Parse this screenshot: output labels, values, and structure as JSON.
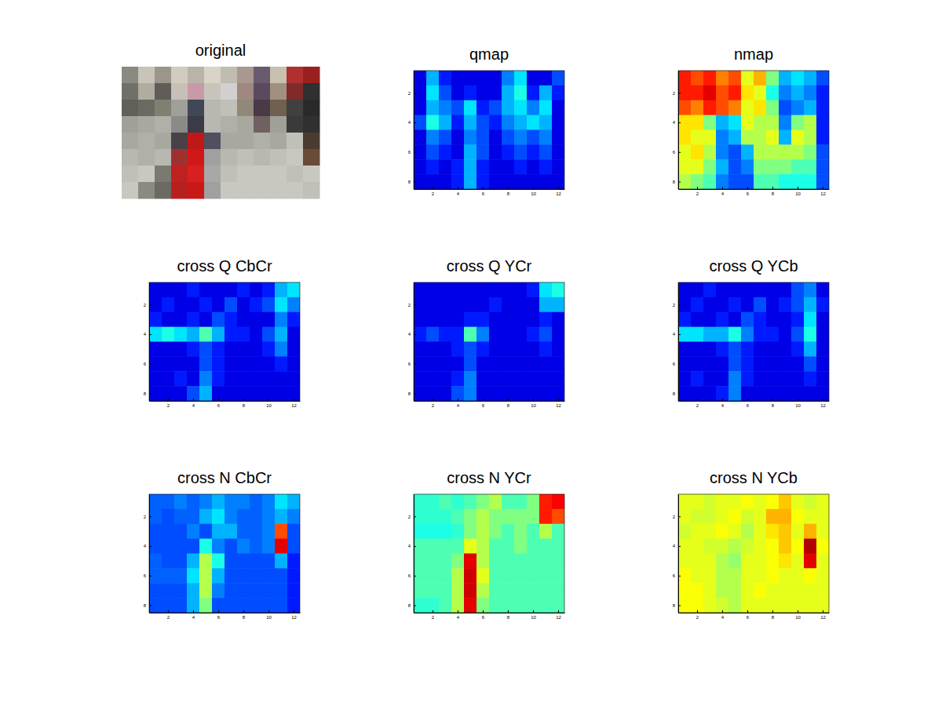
{
  "chart_data": [
    {
      "type": "image",
      "title": "original",
      "colors": [
        [
          "#8a8a80",
          "#c8c4b8",
          "#9a968c",
          "#d0ccc0",
          "#b8b4a8",
          "#d8d4c8",
          "#c0bcb0",
          "#a89890",
          "#6a5a70",
          "#c8c0b0",
          "#b03030",
          "#9a2020"
        ],
        [
          "#707068",
          "#b0aca0",
          "#605c58",
          "#c8c0b8",
          "#c89aa8",
          "#c8c4bc",
          "#d0d0d0",
          "#a08880",
          "#5a4a60",
          "#a09080",
          "#802a2a",
          "#303030"
        ],
        [
          "#606058",
          "#6a6a60",
          "#808070",
          "#a0a098",
          "#404858",
          "#b8b8b0",
          "#c0c0b8",
          "#908878",
          "#4a3a48",
          "#706050",
          "#404040",
          "#2a2a2a"
        ],
        [
          "#a0a098",
          "#a8a8a0",
          "#b0b0a8",
          "#8a8a88",
          "#3a3a48",
          "#b8b8b0",
          "#b0b0a8",
          "#a8a8a0",
          "#706060",
          "#a0a098",
          "#3a3a3a",
          "#303030"
        ],
        [
          "#a8a8a0",
          "#b0b0a8",
          "#a8a8a0",
          "#4a4048",
          "#c01818",
          "#505060",
          "#a8a8a0",
          "#a8a8a0",
          "#b0b0a8",
          "#a8a8a0",
          "#c0c0b8",
          "#4a3a30"
        ],
        [
          "#b8b8b0",
          "#b0b0a8",
          "#b8b8b0",
          "#a03030",
          "#d01818",
          "#a0a0a0",
          "#b8b8b0",
          "#c0c0b8",
          "#b8b8b0",
          "#c0c0b8",
          "#c8c8c0",
          "#6a4a38"
        ],
        [
          "#c0c0b8",
          "#c8c8c0",
          "#7a7a70",
          "#c02020",
          "#d82020",
          "#a8a8a8",
          "#c0c0b8",
          "#c8c8c0",
          "#c8c8c0",
          "#c8c8c0",
          "#c0c0b8",
          "#c8c8c0"
        ],
        [
          "#c8c8c0",
          "#8a8a80",
          "#6a6a60",
          "#b82020",
          "#c81818",
          "#a0a0a0",
          "#c8c8c0",
          "#c8c8c0",
          "#c8c8c0",
          "#c8c8c0",
          "#c8c8c0",
          "#c0c0b8"
        ]
      ]
    },
    {
      "type": "heatmap",
      "title": "qmap",
      "clim": [
        0,
        1
      ],
      "xlim": [
        0.5,
        12.5
      ],
      "ylim": [
        0.5,
        8.5
      ],
      "xticks": [
        2,
        4,
        6,
        8,
        10,
        12
      ],
      "yticks": [
        2,
        4,
        6,
        8
      ],
      "z": [
        [
          0.1,
          0.3,
          0.15,
          0.1,
          0.1,
          0.1,
          0.1,
          0.25,
          0.35,
          0.1,
          0.1,
          0.2
        ],
        [
          0.1,
          0.35,
          0.2,
          0.1,
          0.15,
          0.1,
          0.1,
          0.3,
          0.4,
          0.15,
          0.3,
          0.15
        ],
        [
          0.1,
          0.3,
          0.25,
          0.2,
          0.35,
          0.15,
          0.2,
          0.3,
          0.35,
          0.25,
          0.35,
          0.1
        ],
        [
          0.2,
          0.4,
          0.3,
          0.15,
          0.3,
          0.2,
          0.15,
          0.25,
          0.3,
          0.35,
          0.3,
          0.1
        ],
        [
          0.1,
          0.25,
          0.2,
          0.1,
          0.25,
          0.2,
          0.1,
          0.2,
          0.25,
          0.2,
          0.25,
          0.1
        ],
        [
          0.1,
          0.2,
          0.15,
          0.1,
          0.3,
          0.2,
          0.1,
          0.15,
          0.2,
          0.15,
          0.2,
          0.1
        ],
        [
          0.1,
          0.15,
          0.1,
          0.15,
          0.3,
          0.15,
          0.1,
          0.1,
          0.15,
          0.1,
          0.15,
          0.1
        ],
        [
          0.1,
          0.1,
          0.1,
          0.15,
          0.3,
          0.15,
          0.1,
          0.1,
          0.1,
          0.1,
          0.1,
          0.1
        ]
      ]
    },
    {
      "type": "heatmap",
      "title": "nmap",
      "clim": [
        0,
        1
      ],
      "xlim": [
        0.5,
        12.5
      ],
      "ylim": [
        0.5,
        8.5
      ],
      "xticks": [
        2,
        4,
        6,
        8,
        10,
        12
      ],
      "yticks": [
        2,
        4,
        6,
        8
      ],
      "z": [
        [
          0.85,
          0.8,
          0.85,
          0.75,
          0.8,
          0.6,
          0.7,
          0.5,
          0.3,
          0.35,
          0.3,
          0.2
        ],
        [
          0.85,
          0.85,
          0.9,
          0.8,
          0.85,
          0.65,
          0.6,
          0.4,
          0.25,
          0.3,
          0.25,
          0.15
        ],
        [
          0.8,
          0.75,
          0.85,
          0.8,
          0.75,
          0.6,
          0.65,
          0.5,
          0.2,
          0.25,
          0.3,
          0.15
        ],
        [
          0.65,
          0.65,
          0.5,
          0.3,
          0.35,
          0.6,
          0.55,
          0.55,
          0.25,
          0.5,
          0.55,
          0.15
        ],
        [
          0.65,
          0.6,
          0.6,
          0.25,
          0.3,
          0.55,
          0.55,
          0.6,
          0.3,
          0.6,
          0.55,
          0.15
        ],
        [
          0.6,
          0.65,
          0.55,
          0.25,
          0.2,
          0.3,
          0.55,
          0.55,
          0.55,
          0.55,
          0.5,
          0.2
        ],
        [
          0.6,
          0.6,
          0.5,
          0.3,
          0.2,
          0.25,
          0.5,
          0.5,
          0.5,
          0.45,
          0.45,
          0.2
        ],
        [
          0.55,
          0.5,
          0.45,
          0.25,
          0.2,
          0.2,
          0.45,
          0.45,
          0.4,
          0.4,
          0.4,
          0.2
        ]
      ]
    },
    {
      "type": "heatmap",
      "title": "cross Q CbCr",
      "clim": [
        0,
        1
      ],
      "xlim": [
        0.5,
        12.5
      ],
      "ylim": [
        0.5,
        8.5
      ],
      "xticks": [
        2,
        4,
        6,
        8,
        10,
        12
      ],
      "yticks": [
        2,
        4,
        6,
        8
      ],
      "z": [
        [
          0.1,
          0.1,
          0.1,
          0.15,
          0.1,
          0.1,
          0.1,
          0.15,
          0.1,
          0.15,
          0.3,
          0.35
        ],
        [
          0.1,
          0.15,
          0.1,
          0.1,
          0.15,
          0.1,
          0.2,
          0.1,
          0.15,
          0.2,
          0.35,
          0.25
        ],
        [
          0.15,
          0.1,
          0.1,
          0.15,
          0.1,
          0.2,
          0.15,
          0.1,
          0.1,
          0.1,
          0.25,
          0.15
        ],
        [
          0.35,
          0.4,
          0.35,
          0.3,
          0.45,
          0.3,
          0.15,
          0.15,
          0.1,
          0.2,
          0.3,
          0.1
        ],
        [
          0.1,
          0.1,
          0.1,
          0.15,
          0.2,
          0.15,
          0.1,
          0.1,
          0.1,
          0.15,
          0.25,
          0.1
        ],
        [
          0.1,
          0.1,
          0.1,
          0.1,
          0.2,
          0.15,
          0.1,
          0.1,
          0.1,
          0.1,
          0.15,
          0.1
        ],
        [
          0.1,
          0.1,
          0.15,
          0.1,
          0.25,
          0.15,
          0.1,
          0.1,
          0.1,
          0.1,
          0.1,
          0.1
        ],
        [
          0.1,
          0.1,
          0.1,
          0.2,
          0.3,
          0.1,
          0.1,
          0.1,
          0.1,
          0.1,
          0.1,
          0.1
        ]
      ]
    },
    {
      "type": "heatmap",
      "title": "cross Q YCr",
      "clim": [
        0,
        1
      ],
      "xlim": [
        0.5,
        12.5
      ],
      "ylim": [
        0.5,
        8.5
      ],
      "xticks": [
        2,
        4,
        6,
        8,
        10,
        12
      ],
      "yticks": [
        2,
        4,
        6,
        8
      ],
      "z": [
        [
          0.1,
          0.1,
          0.1,
          0.1,
          0.1,
          0.1,
          0.1,
          0.1,
          0.1,
          0.15,
          0.35,
          0.4
        ],
        [
          0.1,
          0.1,
          0.1,
          0.1,
          0.1,
          0.1,
          0.15,
          0.1,
          0.1,
          0.1,
          0.3,
          0.3
        ],
        [
          0.1,
          0.1,
          0.1,
          0.1,
          0.15,
          0.15,
          0.1,
          0.1,
          0.1,
          0.1,
          0.15,
          0.1
        ],
        [
          0.15,
          0.2,
          0.15,
          0.15,
          0.45,
          0.25,
          0.1,
          0.1,
          0.1,
          0.15,
          0.2,
          0.1
        ],
        [
          0.1,
          0.1,
          0.1,
          0.15,
          0.2,
          0.15,
          0.1,
          0.1,
          0.1,
          0.1,
          0.15,
          0.1
        ],
        [
          0.1,
          0.1,
          0.1,
          0.1,
          0.2,
          0.1,
          0.1,
          0.1,
          0.1,
          0.1,
          0.1,
          0.1
        ],
        [
          0.1,
          0.1,
          0.1,
          0.15,
          0.25,
          0.1,
          0.1,
          0.1,
          0.1,
          0.1,
          0.1,
          0.1
        ],
        [
          0.1,
          0.1,
          0.1,
          0.2,
          0.25,
          0.1,
          0.1,
          0.1,
          0.1,
          0.1,
          0.1,
          0.1
        ]
      ]
    },
    {
      "type": "heatmap",
      "title": "cross Q YCb",
      "clim": [
        0,
        1
      ],
      "xlim": [
        0.5,
        12.5
      ],
      "ylim": [
        0.5,
        8.5
      ],
      "xticks": [
        2,
        4,
        6,
        8,
        10,
        12
      ],
      "yticks": [
        2,
        4,
        6,
        8
      ],
      "z": [
        [
          0.1,
          0.1,
          0.15,
          0.1,
          0.1,
          0.1,
          0.1,
          0.1,
          0.1,
          0.2,
          0.25,
          0.1
        ],
        [
          0.1,
          0.15,
          0.1,
          0.1,
          0.15,
          0.1,
          0.2,
          0.1,
          0.15,
          0.2,
          0.3,
          0.15
        ],
        [
          0.15,
          0.1,
          0.1,
          0.15,
          0.1,
          0.2,
          0.15,
          0.1,
          0.1,
          0.15,
          0.35,
          0.1
        ],
        [
          0.35,
          0.35,
          0.3,
          0.3,
          0.4,
          0.25,
          0.15,
          0.15,
          0.1,
          0.2,
          0.4,
          0.1
        ],
        [
          0.1,
          0.1,
          0.1,
          0.15,
          0.2,
          0.15,
          0.1,
          0.1,
          0.1,
          0.15,
          0.3,
          0.1
        ],
        [
          0.1,
          0.1,
          0.1,
          0.1,
          0.2,
          0.15,
          0.1,
          0.1,
          0.1,
          0.1,
          0.2,
          0.1
        ],
        [
          0.1,
          0.15,
          0.1,
          0.1,
          0.25,
          0.15,
          0.1,
          0.1,
          0.1,
          0.1,
          0.15,
          0.1
        ],
        [
          0.1,
          0.1,
          0.1,
          0.15,
          0.25,
          0.1,
          0.1,
          0.1,
          0.1,
          0.1,
          0.1,
          0.1
        ]
      ]
    },
    {
      "type": "heatmap",
      "title": "cross N CbCr",
      "clim": [
        0,
        1
      ],
      "xlim": [
        0.5,
        12.5
      ],
      "ylim": [
        0.5,
        8.5
      ],
      "xticks": [
        2,
        4,
        6,
        8,
        10,
        12
      ],
      "yticks": [
        2,
        4,
        6,
        8
      ],
      "z": [
        [
          0.22,
          0.22,
          0.25,
          0.22,
          0.25,
          0.3,
          0.25,
          0.25,
          0.22,
          0.25,
          0.35,
          0.3
        ],
        [
          0.22,
          0.2,
          0.22,
          0.22,
          0.3,
          0.35,
          0.25,
          0.22,
          0.22,
          0.25,
          0.3,
          0.25
        ],
        [
          0.2,
          0.2,
          0.2,
          0.25,
          0.2,
          0.3,
          0.3,
          0.22,
          0.22,
          0.25,
          0.8,
          0.2
        ],
        [
          0.2,
          0.2,
          0.2,
          0.2,
          0.4,
          0.25,
          0.2,
          0.25,
          0.22,
          0.25,
          0.9,
          0.2
        ],
        [
          0.22,
          0.2,
          0.2,
          0.3,
          0.55,
          0.4,
          0.2,
          0.2,
          0.2,
          0.2,
          0.3,
          0.15
        ],
        [
          0.22,
          0.22,
          0.22,
          0.35,
          0.55,
          0.3,
          0.2,
          0.2,
          0.2,
          0.2,
          0.2,
          0.15
        ],
        [
          0.2,
          0.2,
          0.2,
          0.3,
          0.55,
          0.25,
          0.2,
          0.2,
          0.2,
          0.2,
          0.2,
          0.15
        ],
        [
          0.2,
          0.2,
          0.2,
          0.3,
          0.5,
          0.2,
          0.2,
          0.2,
          0.2,
          0.2,
          0.2,
          0.15
        ]
      ]
    },
    {
      "type": "heatmap",
      "title": "cross N YCr",
      "clim": [
        0,
        1
      ],
      "xlim": [
        0.5,
        12.5
      ],
      "ylim": [
        0.5,
        8.5
      ],
      "xticks": [
        2,
        4,
        6,
        8,
        10,
        12
      ],
      "yticks": [
        2,
        4,
        6,
        8
      ],
      "z": [
        [
          0.42,
          0.42,
          0.45,
          0.42,
          0.45,
          0.5,
          0.55,
          0.45,
          0.45,
          0.5,
          0.85,
          0.88
        ],
        [
          0.42,
          0.42,
          0.42,
          0.45,
          0.5,
          0.55,
          0.5,
          0.5,
          0.5,
          0.5,
          0.85,
          0.8
        ],
        [
          0.4,
          0.4,
          0.4,
          0.42,
          0.5,
          0.55,
          0.5,
          0.45,
          0.5,
          0.45,
          0.55,
          0.45
        ],
        [
          0.45,
          0.45,
          0.45,
          0.45,
          0.6,
          0.55,
          0.45,
          0.45,
          0.5,
          0.45,
          0.45,
          0.45
        ],
        [
          0.45,
          0.45,
          0.45,
          0.5,
          0.9,
          0.55,
          0.45,
          0.45,
          0.45,
          0.45,
          0.45,
          0.45
        ],
        [
          0.45,
          0.45,
          0.45,
          0.55,
          0.92,
          0.6,
          0.45,
          0.45,
          0.45,
          0.45,
          0.45,
          0.45
        ],
        [
          0.45,
          0.45,
          0.45,
          0.55,
          0.92,
          0.55,
          0.45,
          0.45,
          0.45,
          0.45,
          0.45,
          0.45
        ],
        [
          0.42,
          0.42,
          0.45,
          0.55,
          0.9,
          0.5,
          0.45,
          0.45,
          0.45,
          0.45,
          0.45,
          0.45
        ]
      ]
    },
    {
      "type": "heatmap",
      "title": "cross N YCb",
      "clim": [
        0,
        1
      ],
      "xlim": [
        0.5,
        12.5
      ],
      "ylim": [
        0.5,
        8.5
      ],
      "xticks": [
        2,
        4,
        6,
        8,
        10,
        12
      ],
      "yticks": [
        2,
        4,
        6,
        8
      ],
      "z": [
        [
          0.6,
          0.6,
          0.58,
          0.6,
          0.6,
          0.62,
          0.6,
          0.62,
          0.68,
          0.6,
          0.58,
          0.6
        ],
        [
          0.6,
          0.58,
          0.58,
          0.6,
          0.62,
          0.58,
          0.6,
          0.7,
          0.7,
          0.62,
          0.6,
          0.6
        ],
        [
          0.58,
          0.6,
          0.6,
          0.62,
          0.6,
          0.55,
          0.6,
          0.65,
          0.68,
          0.6,
          0.7,
          0.6
        ],
        [
          0.6,
          0.6,
          0.58,
          0.58,
          0.55,
          0.58,
          0.6,
          0.62,
          0.68,
          0.62,
          0.95,
          0.62
        ],
        [
          0.6,
          0.6,
          0.6,
          0.55,
          0.52,
          0.6,
          0.6,
          0.62,
          0.65,
          0.6,
          0.9,
          0.6
        ],
        [
          0.62,
          0.6,
          0.6,
          0.55,
          0.55,
          0.6,
          0.6,
          0.62,
          0.6,
          0.6,
          0.62,
          0.6
        ],
        [
          0.62,
          0.62,
          0.6,
          0.55,
          0.55,
          0.6,
          0.62,
          0.6,
          0.6,
          0.6,
          0.6,
          0.6
        ],
        [
          0.62,
          0.62,
          0.6,
          0.58,
          0.55,
          0.6,
          0.6,
          0.6,
          0.6,
          0.6,
          0.6,
          0.6
        ]
      ]
    }
  ]
}
